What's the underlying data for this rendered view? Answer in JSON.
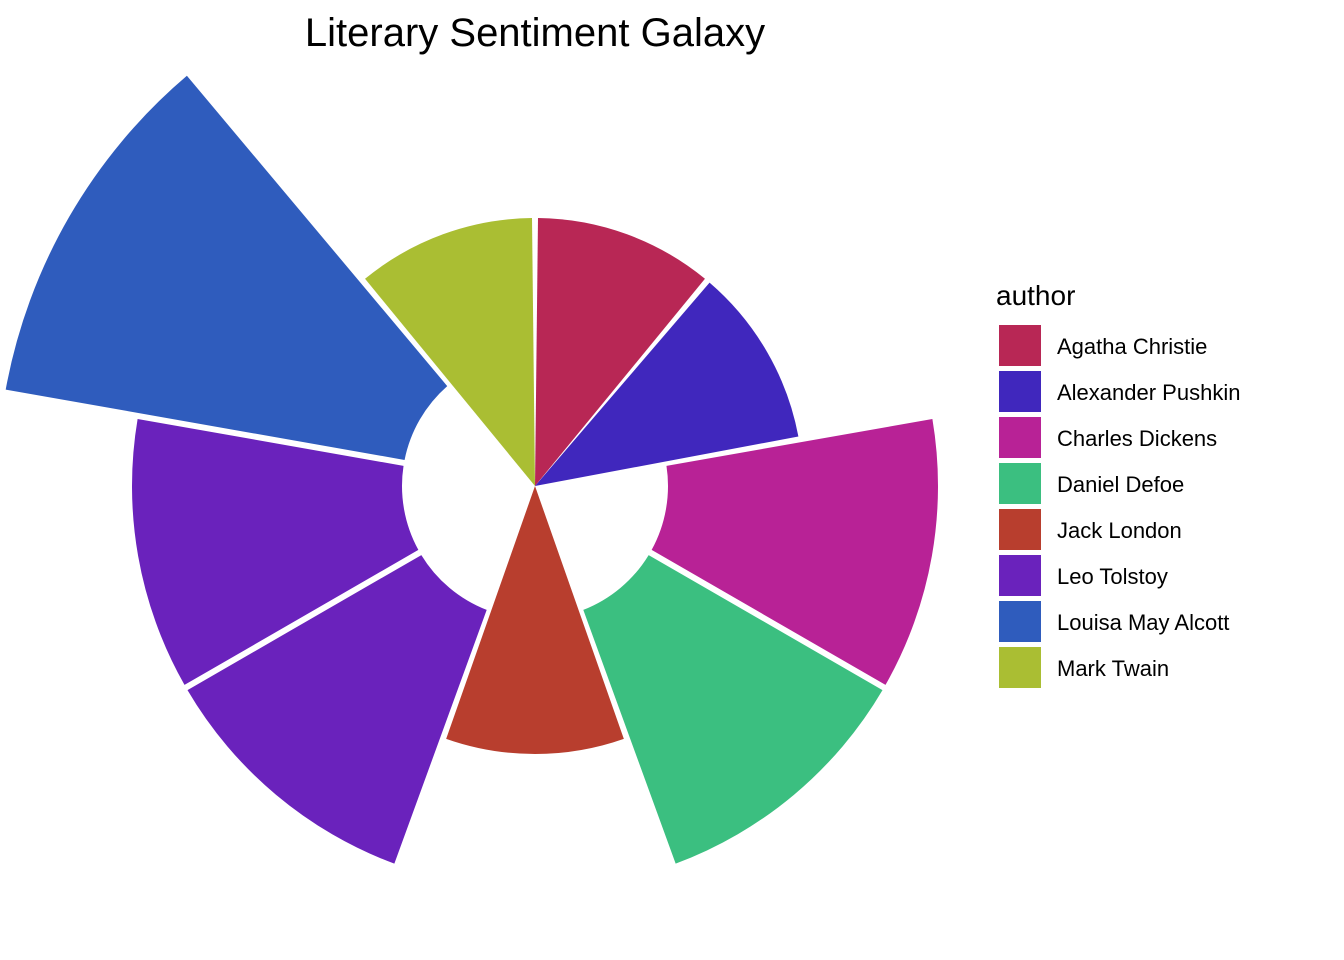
{
  "chart_data": {
    "type": "bar",
    "subtype": "radial-bar",
    "title": "Literary Sentiment Galaxy",
    "legend": {
      "title": "author",
      "placement": "right",
      "entries": [
        {
          "name": "Agatha Christie",
          "color": "#B82755"
        },
        {
          "name": "Alexander Pushkin",
          "color": "#4027BD"
        },
        {
          "name": "Charles Dickens",
          "color": "#B82296"
        },
        {
          "name": "Daniel Defoe",
          "color": "#3BBF80"
        },
        {
          "name": "Jack London",
          "color": "#B83E2E"
        },
        {
          "name": "Leo Tolstoy",
          "color": "#6A22BC"
        },
        {
          "name": "Louisa May Alcott",
          "color": "#2F5CBD"
        },
        {
          "name": "Mark Twain",
          "color": "#AABE33"
        }
      ]
    },
    "bars": [
      {
        "author": "Agatha Christie",
        "value": 1.0
      },
      {
        "author": "Alexander Pushkin",
        "value": 1.0
      },
      {
        "author": "Charles Dickens",
        "value": 2.0
      },
      {
        "author": "Daniel Defoe",
        "value": 2.0
      },
      {
        "author": "Jack London",
        "value": 1.0
      },
      {
        "author": "Leo Tolstoy",
        "value": 2.0
      },
      {
        "author": "Leo Tolstoy",
        "value": 2.0
      },
      {
        "author": "Louisa May Alcott",
        "value": 3.0
      },
      {
        "author": "Mark Twain",
        "value": 1.0
      }
    ],
    "value_range": [
      0,
      3
    ],
    "grid": false,
    "axes_visible": false
  }
}
